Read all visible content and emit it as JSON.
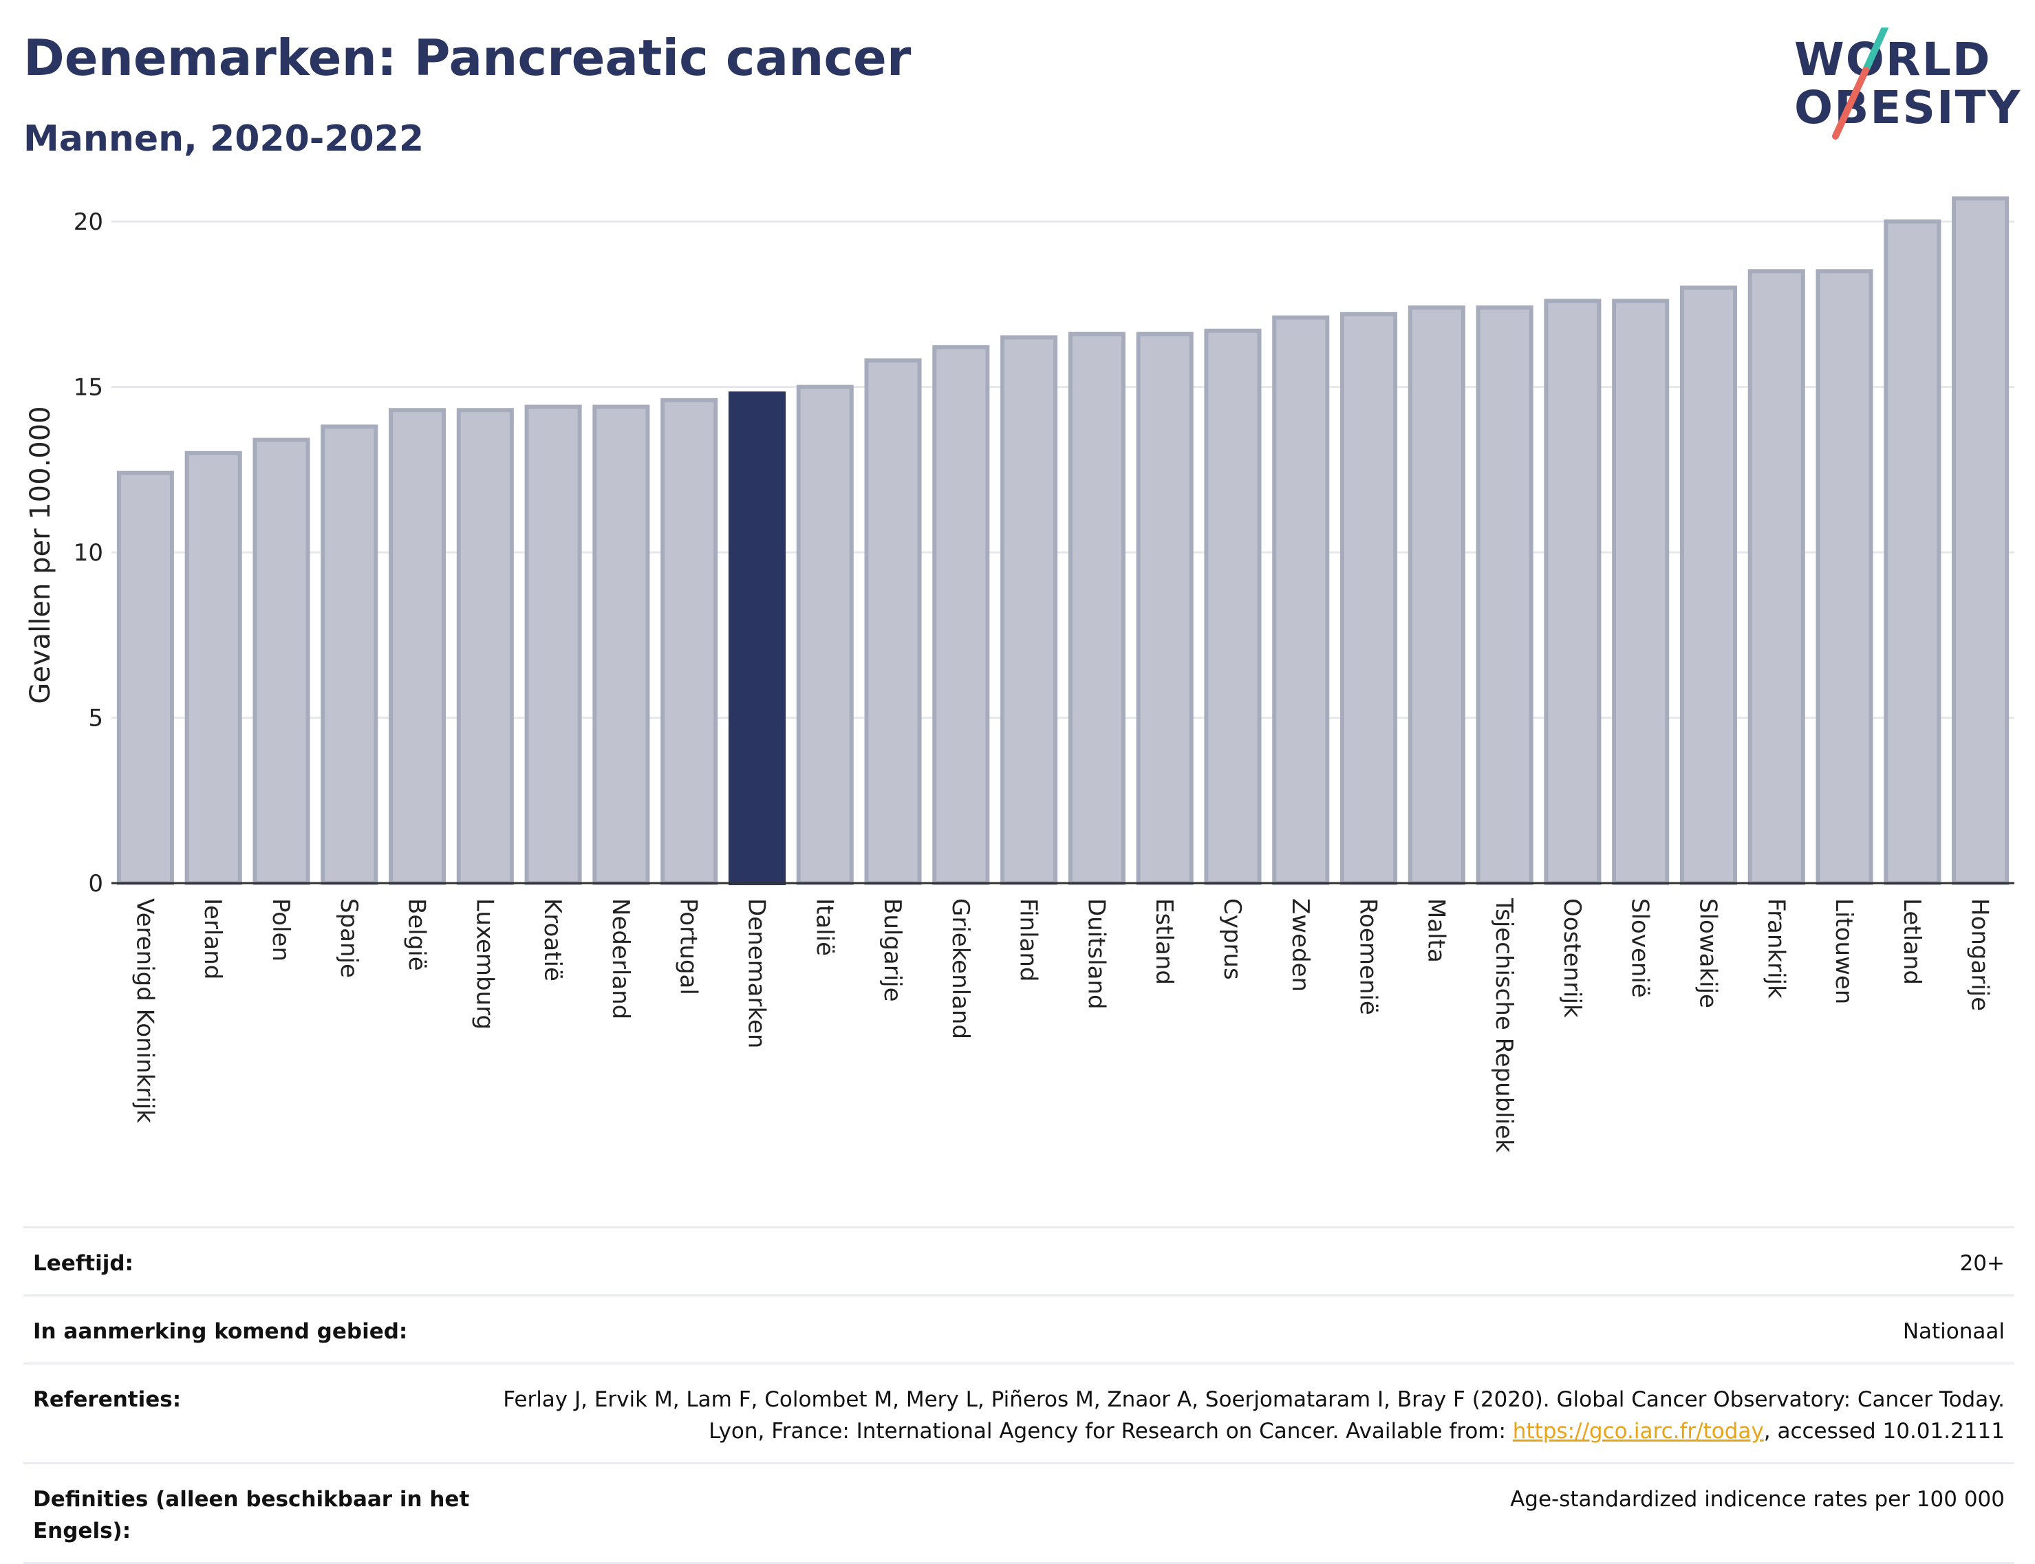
{
  "header": {
    "title": "Denemarken: Pancreatic cancer",
    "subtitle": "Mannen, 2020-2022"
  },
  "logo": {
    "line1": "WORLD",
    "line2": "OBESITY",
    "accent_colors": [
      "#3bbfad",
      "#e8675a"
    ]
  },
  "colors": {
    "bar_default": "#c0c3cf",
    "bar_default_border": "#a7acbd",
    "bar_highlight": "#2b3561",
    "grid": "#e6e8ee",
    "axis": "#333333"
  },
  "chart_data": {
    "type": "bar",
    "ylabel": "Gevallen per 100.000",
    "xlabel": "",
    "ylim": [
      0,
      21.5
    ],
    "yticks": [
      0,
      5,
      10,
      15,
      20
    ],
    "grid": true,
    "highlight": "Denemarken",
    "categories": [
      "Verenigd Koninkrijk",
      "Ierland",
      "Polen",
      "Spanje",
      "België",
      "Luxemburg",
      "Kroatië",
      "Nederland",
      "Portugal",
      "Denemarken",
      "Italië",
      "Bulgarije",
      "Griekenland",
      "Finland",
      "Duitsland",
      "Estland",
      "Cyprus",
      "Zweden",
      "Roemenië",
      "Malta",
      "Tsjechische Republiek",
      "Oostenrijk",
      "Slovenië",
      "Slowakije",
      "Frankrijk",
      "Litouwen",
      "Letland",
      "Hongarije"
    ],
    "values": [
      12.4,
      13.0,
      13.4,
      13.8,
      14.3,
      14.3,
      14.4,
      14.4,
      14.6,
      14.8,
      15.0,
      15.8,
      16.2,
      16.5,
      16.6,
      16.6,
      16.7,
      17.1,
      17.2,
      17.4,
      17.4,
      17.6,
      17.6,
      18.0,
      18.5,
      18.5,
      20.0,
      20.7
    ]
  },
  "footer": {
    "age_label": "Leeftijd:",
    "age_value": "20+",
    "area_label": "In aanmerking komend gebied:",
    "area_value": "Nationaal",
    "ref_label": "Referenties:",
    "ref_text_1": "Ferlay J, Ervik M, Lam F, Colombet M, Mery L, Piñeros M, Znaor A, Soerjomataram I, Bray F (2020). Global Cancer Observatory: Cancer Today. Lyon, France: International Agency for Research on Cancer. Available from: ",
    "ref_link": "https://gco.iarc.fr/today",
    "ref_text_2": ", accessed 10.01.2111",
    "def_label": "Definities (alleen beschikbaar in het Engels):",
    "def_value": "Age-standardized indicence rates per 100 000"
  }
}
